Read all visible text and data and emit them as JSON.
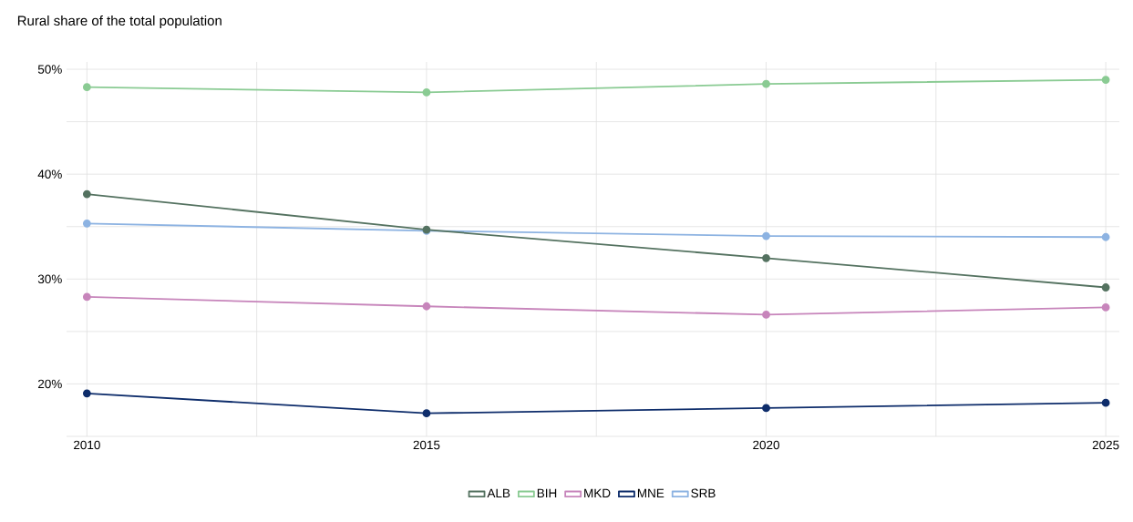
{
  "chart_data": {
    "type": "line",
    "title": "Rural share of the total population",
    "x": [
      2010,
      2015,
      2020,
      2025
    ],
    "series": [
      {
        "name": "ALB",
        "color": "#547260",
        "values": [
          38.1,
          34.7,
          32.0,
          29.2
        ]
      },
      {
        "name": "BIH",
        "color": "#8acb93",
        "values": [
          48.3,
          47.8,
          48.6,
          49.0
        ]
      },
      {
        "name": "MKD",
        "color": "#c785bb",
        "values": [
          28.3,
          27.4,
          26.6,
          27.3
        ]
      },
      {
        "name": "MNE",
        "color": "#0e2d6b",
        "values": [
          19.1,
          17.2,
          17.7,
          18.2
        ]
      },
      {
        "name": "SRB",
        "color": "#8db3e2",
        "values": [
          35.3,
          34.6,
          34.1,
          34.0
        ]
      }
    ],
    "xlim": [
      2009.7,
      2025.2
    ],
    "ylim": [
      15,
      50.7
    ],
    "xticks": [
      2010,
      {
        "value": 2012.5,
        "label": null
      },
      2015,
      {
        "value": 2017.5,
        "label": null
      },
      2020,
      {
        "value": 2022.5,
        "label": null
      },
      2025
    ],
    "yticks": [
      {
        "value": 15,
        "label": null
      },
      {
        "value": 20,
        "label": "20%"
      },
      {
        "value": 25,
        "label": null
      },
      {
        "value": 30,
        "label": "30%"
      },
      {
        "value": 35,
        "label": null
      },
      {
        "value": 40,
        "label": "40%"
      },
      {
        "value": 45,
        "label": null
      },
      {
        "value": 50,
        "label": "50%"
      }
    ],
    "grid": true,
    "legend": "bottom",
    "marker": "circle",
    "line_style": "solid"
  }
}
